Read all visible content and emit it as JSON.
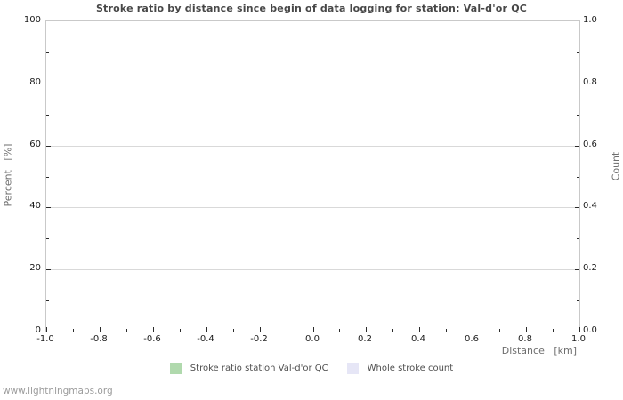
{
  "page": {
    "watermark": "www.lightningmaps.org"
  },
  "chart_data": {
    "type": "line",
    "title": "Stroke ratio by distance since begin of data logging for station: Val-d'or QC",
    "subtitle": "",
    "grid": "horizontal-major-only",
    "legend_position": "bottom-center",
    "x_axis": {
      "label": "Distance   [km]",
      "min": -1.0,
      "max": 1.0,
      "tick_labels": [
        "-1.0",
        "-0.8",
        "-0.6",
        "-0.4",
        "-0.2",
        "0.0",
        "0.2",
        "0.4",
        "0.6",
        "0.8",
        "1.0"
      ],
      "minor_ticks_between_majors": 1
    },
    "y_axis_left": {
      "label": "Percent   [%]",
      "min": 0,
      "max": 100,
      "tick_labels": [
        "0",
        "20",
        "40",
        "60",
        "80",
        "100"
      ],
      "minor_ticks_between_majors": 1
    },
    "y_axis_right": {
      "label": "Count",
      "min": 0.0,
      "max": 1.0,
      "tick_labels": [
        "0.0",
        "0.2",
        "0.4",
        "0.6",
        "0.8",
        "1.0"
      ],
      "minor_ticks_between_majors": 1
    },
    "series": [
      {
        "name": "Stroke ratio station Val-d'or QC",
        "color": "#b0d9ad",
        "values": []
      },
      {
        "name": "Whole stroke count",
        "color": "#e6e6f6",
        "values": []
      }
    ],
    "note": "plot area is empty - no data points rendered"
  },
  "colors": {
    "series_stroke_ratio": "#b0d9ad",
    "series_whole_count": "#e6e6f6",
    "plot_border": "#c9c9c9",
    "gridline": "#d9d9d9",
    "title_text": "#474747",
    "axis_title_text": "#6e6e6e",
    "watermark_text": "#9b9b9b"
  }
}
